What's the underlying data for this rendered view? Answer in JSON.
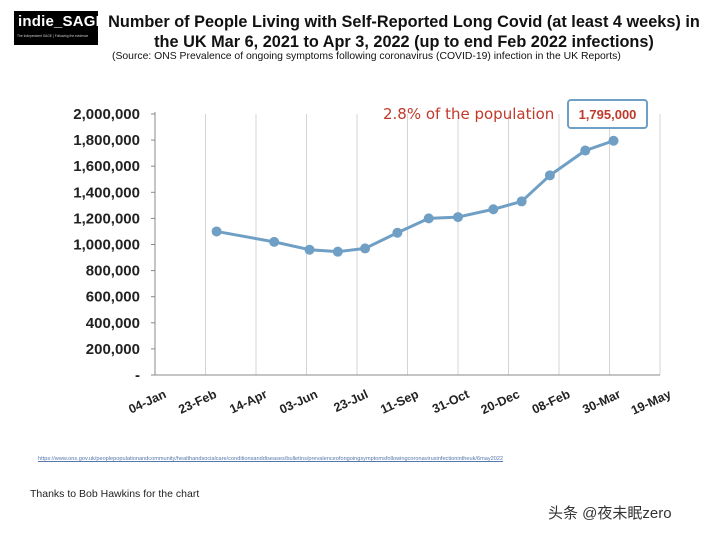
{
  "header": {
    "logo_text": "indie_SAGE",
    "logo_tagline": "The Independent SAGE | Following the evidence",
    "title": "Number of People Living with Self-Reported Long Covid (at least 4 weeks) in the UK Mar 6, 2021 to Apr 3, 2022 (up to end Feb 2022 infections)",
    "source": "(Source: ONS Prevalence of ongoing symptoms following coronavirus (COVID-19) infection in the UK Reports)"
  },
  "footer": {
    "url": "https://www.ons.gov.uk/peoplepopulationandcommunity/healthandsocialcare/conditionsanddiseases/bulletins/prevalenceofongoingsymptomsfollowingcoronavirusinfectionintheuk/6may2022",
    "thanks": "Thanks to Bob Hawkins for the chart",
    "watermark": "头条 @夜未眠zero"
  },
  "chart_data": {
    "type": "line",
    "x_tick_labels": [
      "04-Jan",
      "23-Feb",
      "14-Apr",
      "03-Jun",
      "23-Jul",
      "11-Sep",
      "31-Oct",
      "20-Dec",
      "08-Feb",
      "30-Mar",
      "19-May"
    ],
    "y_tick_labels": [
      "-",
      "200,000",
      "400,000",
      "600,000",
      "800,000",
      "1,000,000",
      "1,200,000",
      "1,400,000",
      "1,600,000",
      "1,800,000",
      "2,000,000"
    ],
    "ylim": [
      0,
      2000000
    ],
    "xlim": [
      "2021-01-04",
      "2022-05-19"
    ],
    "x": [
      "2021-03-06",
      "2021-05-02",
      "2021-06-06",
      "2021-07-04",
      "2021-07-31",
      "2021-09-01",
      "2021-10-02",
      "2021-10-31",
      "2021-12-05",
      "2022-01-02",
      "2022-01-30",
      "2022-03-06",
      "2022-04-03"
    ],
    "y": [
      1100000,
      1020000,
      960000,
      945000,
      970000,
      1090000,
      1200000,
      1210000,
      1270000,
      1330000,
      1530000,
      1720000,
      1795000
    ],
    "series_color": "#6f9fc4",
    "grid": "vertical lines at x ticks",
    "annotation": "2.8% of the population",
    "annotation_color": "#c0392b",
    "callout_value": "1,795,000"
  }
}
